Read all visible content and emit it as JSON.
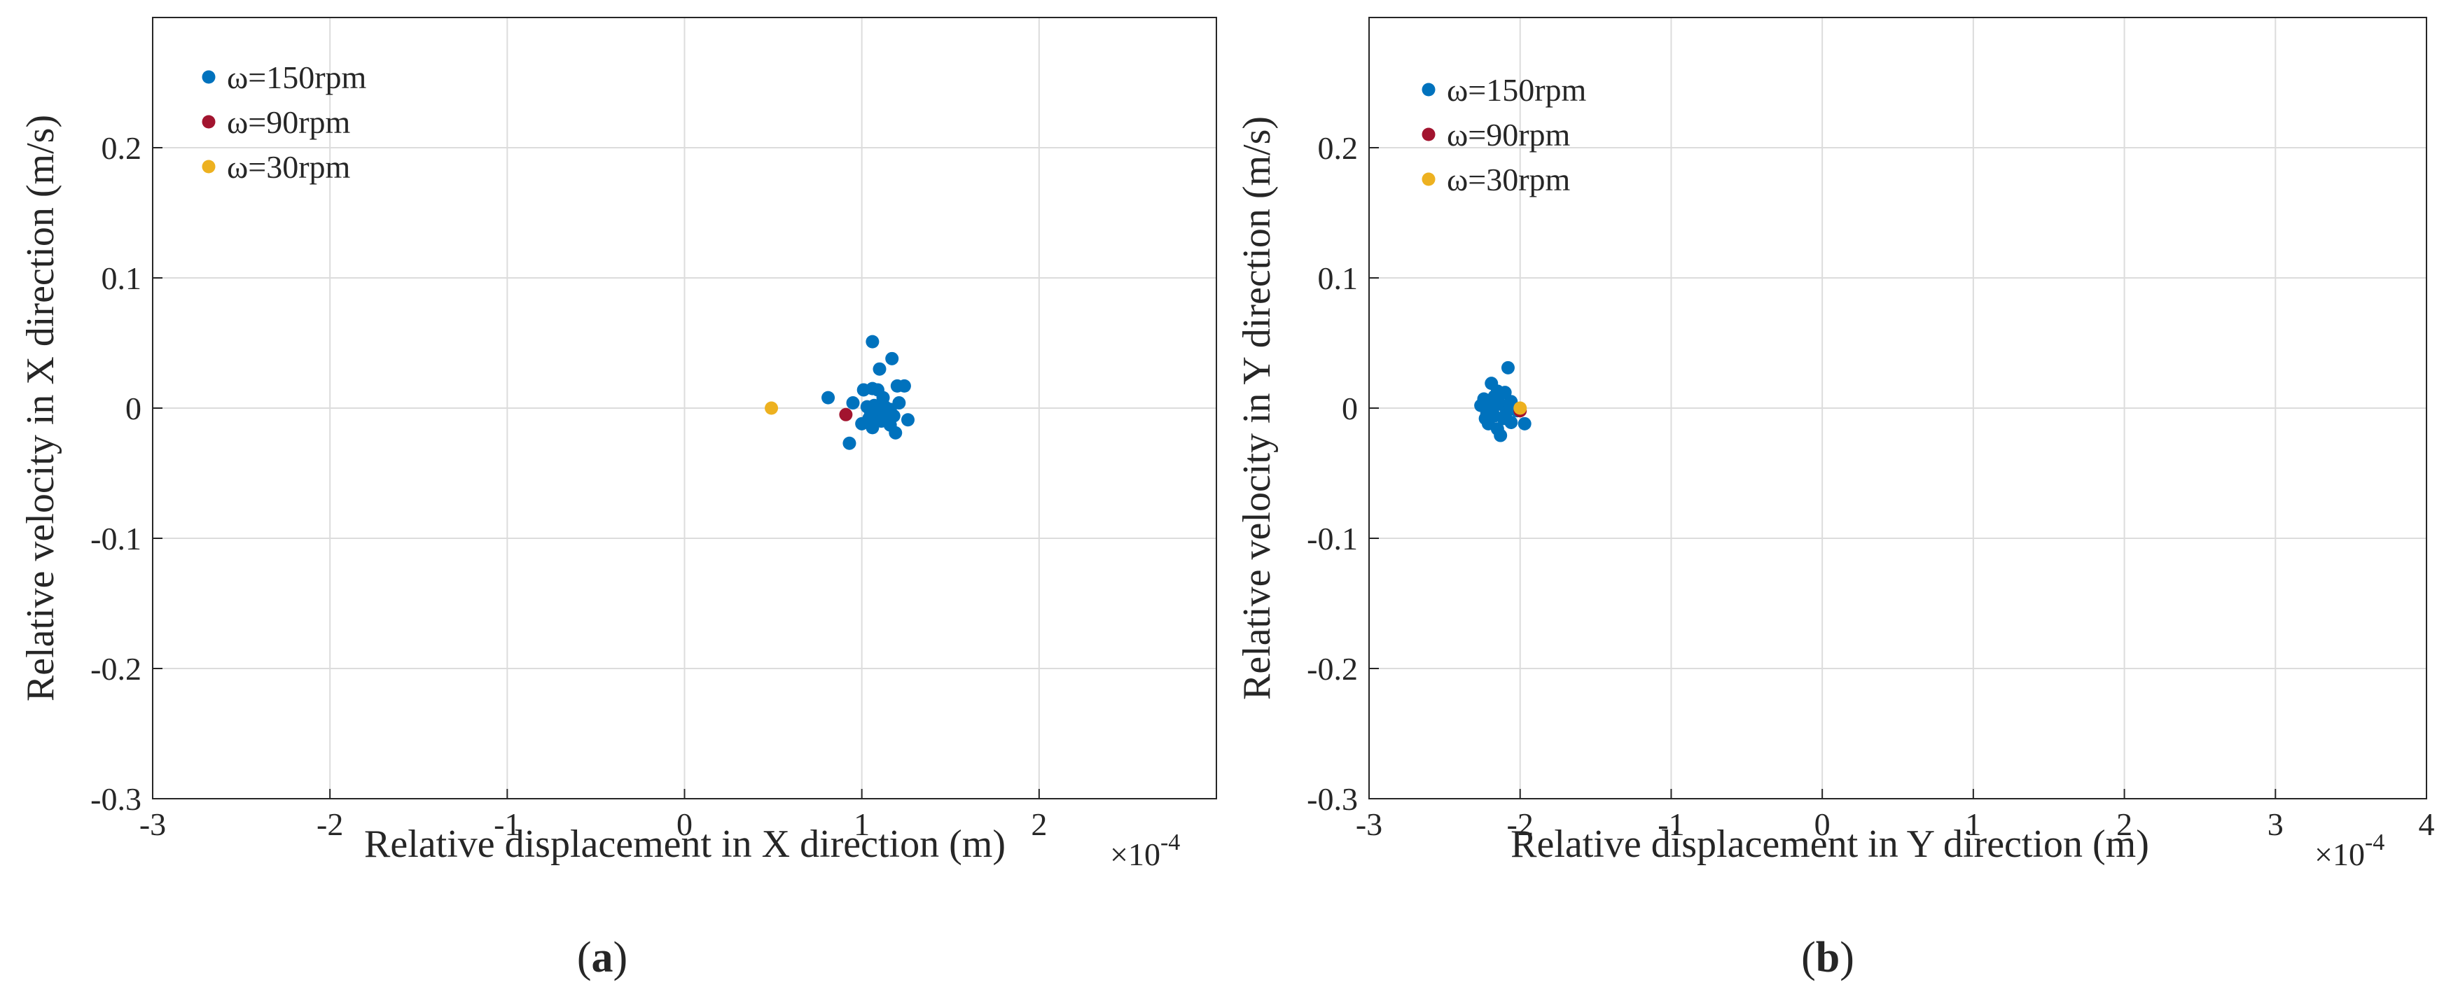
{
  "chart_data": [
    {
      "id": "a",
      "type": "scatter",
      "caption": {
        "open": "(",
        "letter": "a",
        "close": ")"
      },
      "xlabel": "Relative displacement in X direction (m)",
      "ylabel": "Relative velocity in X direction (m/s)",
      "xscale_label": "×10",
      "xscale_exp": "-4",
      "xlim": [
        -3,
        3
      ],
      "ylim": [
        -0.3,
        0.3
      ],
      "xticks": [
        -3,
        -2,
        -1,
        0,
        1,
        2
      ],
      "xtick_labels": [
        "-3",
        "-2",
        "-1",
        "0",
        "1",
        "2"
      ],
      "yticks": [
        -0.3,
        -0.2,
        -0.1,
        0,
        0.1,
        0.2
      ],
      "ytick_labels": [
        "-0.3",
        "-0.2",
        "-0.1",
        "0",
        "0.1",
        "0.2"
      ],
      "grid": true,
      "legend_position": "top-left",
      "series": [
        {
          "name": "ω=150rpm",
          "color": "#0072BD",
          "points": [
            [
              1.06,
              0.051
            ],
            [
              1.17,
              0.038
            ],
            [
              1.1,
              0.03
            ],
            [
              1.06,
              0.015
            ],
            [
              1.01,
              0.014
            ],
            [
              1.09,
              0.014
            ],
            [
              1.2,
              0.017
            ],
            [
              1.24,
              0.017
            ],
            [
              0.81,
              0.008
            ],
            [
              0.95,
              0.004
            ],
            [
              1.12,
              0.008
            ],
            [
              1.21,
              0.004
            ],
            [
              1.03,
              0.001
            ],
            [
              1.07,
              0.002
            ],
            [
              1.13,
              0.001
            ],
            [
              1.16,
              -0.001
            ],
            [
              1.05,
              -0.003
            ],
            [
              1.09,
              -0.004
            ],
            [
              1.18,
              -0.006
            ],
            [
              1.26,
              -0.009
            ],
            [
              1.04,
              -0.008
            ],
            [
              1.11,
              -0.01
            ],
            [
              1.16,
              -0.013
            ],
            [
              1.19,
              -0.019
            ],
            [
              1.06,
              -0.015
            ],
            [
              0.93,
              -0.027
            ],
            [
              1.0,
              -0.012
            ],
            [
              1.14,
              -0.005
            ]
          ]
        },
        {
          "name": "ω=90rpm",
          "color": "#A2142F",
          "points": [
            [
              0.91,
              -0.005
            ]
          ]
        },
        {
          "name": "ω=30rpm",
          "color": "#EDB120",
          "points": [
            [
              0.49,
              0.0
            ]
          ]
        }
      ]
    },
    {
      "id": "b",
      "type": "scatter",
      "caption": {
        "open": "(",
        "letter": "b",
        "close": ")"
      },
      "xlabel": "Relative displacement in Y direction (m)",
      "ylabel": "Relative velocity in Y direction (m/s)",
      "xscale_label": "×10",
      "xscale_exp": "-4",
      "xlim": [
        -3,
        4
      ],
      "ylim": [
        -0.3,
        0.3
      ],
      "xticks": [
        -3,
        -2,
        -1,
        0,
        1,
        2,
        3,
        4
      ],
      "xtick_labels": [
        "-3",
        "-2",
        "-1",
        "0",
        "1",
        "2",
        "3",
        "4"
      ],
      "yticks": [
        -0.3,
        -0.2,
        -0.1,
        0,
        0.1,
        0.2
      ],
      "ytick_labels": [
        "-0.3",
        "-0.2",
        "-0.1",
        "0",
        "0.1",
        "0.2"
      ],
      "grid": true,
      "legend_position": "top-left",
      "series": [
        {
          "name": "ω=150rpm",
          "color": "#0072BD",
          "points": [
            [
              -2.08,
              0.031
            ],
            [
              -2.19,
              0.019
            ],
            [
              -2.15,
              0.013
            ],
            [
              -2.1,
              0.012
            ],
            [
              -2.24,
              0.007
            ],
            [
              -2.17,
              0.009
            ],
            [
              -2.06,
              0.005
            ],
            [
              -2.26,
              0.002
            ],
            [
              -2.2,
              0.002
            ],
            [
              -2.13,
              0.003
            ],
            [
              -2.02,
              -0.002
            ],
            [
              -2.22,
              -0.004
            ],
            [
              -2.17,
              -0.006
            ],
            [
              -2.11,
              -0.008
            ],
            [
              -2.06,
              -0.011
            ],
            [
              -2.21,
              -0.012
            ],
            [
              -2.15,
              -0.016
            ],
            [
              -2.13,
              -0.021
            ],
            [
              -1.97,
              -0.012
            ],
            [
              -2.09,
              -0.003
            ],
            [
              -2.18,
              0.0
            ],
            [
              -2.23,
              -0.008
            ]
          ]
        },
        {
          "name": "ω=90rpm",
          "color": "#A2142F",
          "points": [
            [
              -2.0,
              -0.002
            ]
          ]
        },
        {
          "name": "ω=30rpm",
          "color": "#EDB120",
          "points": [
            [
              -2.0,
              0.0
            ]
          ]
        }
      ]
    }
  ]
}
